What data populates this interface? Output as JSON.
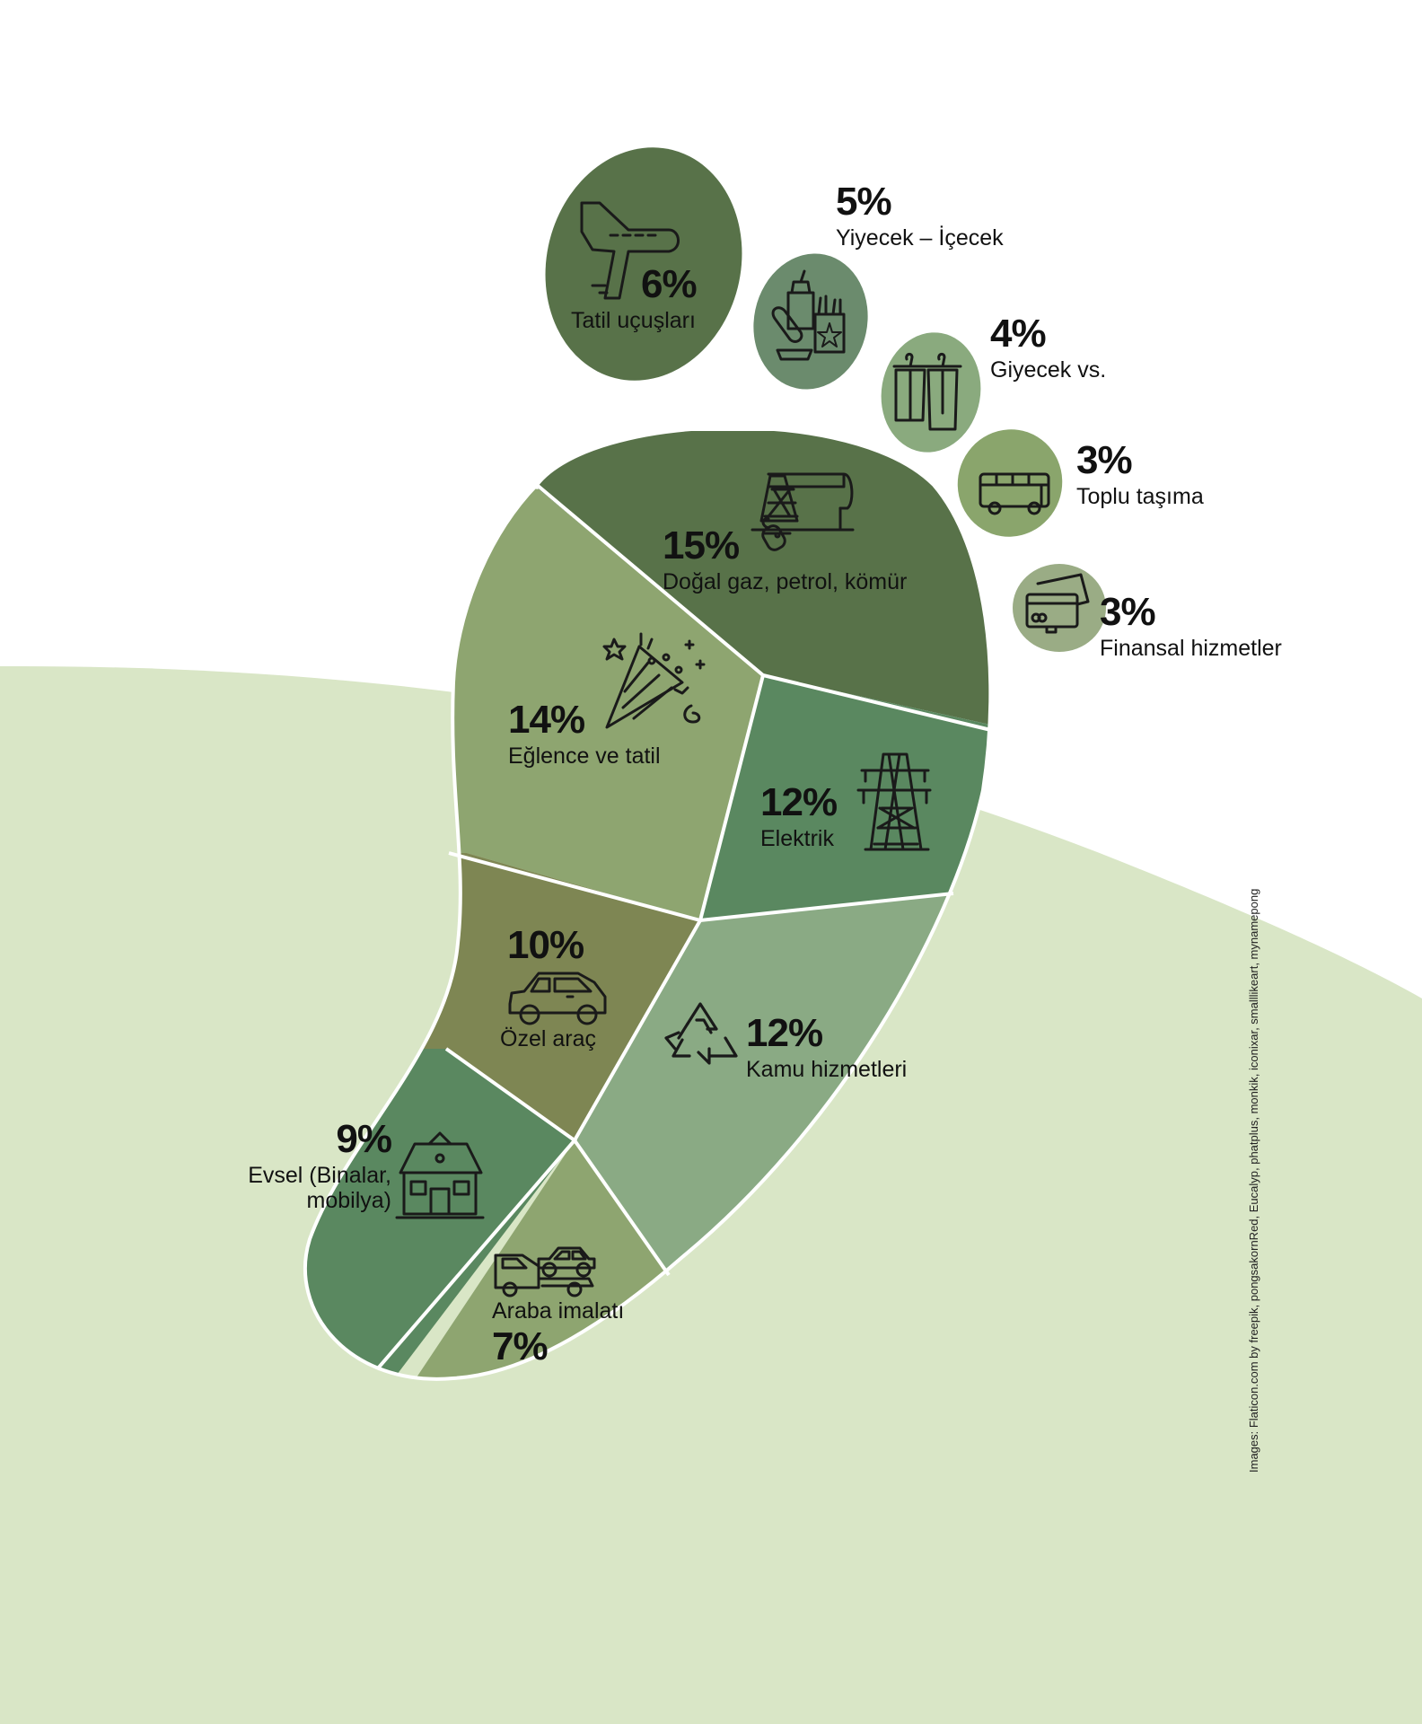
{
  "segments": [
    {
      "id": "tatil-ucuslari",
      "percent": "6%",
      "label": "Tatil uçuşları",
      "color": "#587249",
      "icon": "airplane-icon"
    },
    {
      "id": "yiyecek-icecek",
      "percent": "5%",
      "label": "Yiyecek – İçecek",
      "color": "#6b8b6d",
      "icon": "fast-food-icon"
    },
    {
      "id": "giyecek",
      "percent": "4%",
      "label": "Giyecek vs.",
      "color": "#8aaa7e",
      "icon": "clothes-rack-icon"
    },
    {
      "id": "toplu-tasima",
      "percent": "3%",
      "label": "Toplu taşıma",
      "color": "#8aa56c",
      "icon": "bus-icon"
    },
    {
      "id": "finansal",
      "percent": "3%",
      "label": "Finansal hizmetler",
      "color": "#9aac85",
      "icon": "credit-card-icon"
    },
    {
      "id": "dogal-gaz",
      "percent": "15%",
      "label": "Doğal gaz, petrol, kömür",
      "color": "#587249",
      "icon": "oil-pump-icon"
    },
    {
      "id": "eglence",
      "percent": "14%",
      "label": "Eğlence ve tatil",
      "color": "#8ea570",
      "icon": "party-popper-icon"
    },
    {
      "id": "elektrik",
      "percent": "12%",
      "label": "Elektrik",
      "color": "#5a8860",
      "icon": "power-tower-icon"
    },
    {
      "id": "ozel-arac",
      "percent": "10%",
      "label": "Özel araç",
      "color": "#7e8653",
      "icon": "car-icon"
    },
    {
      "id": "kamu",
      "percent": "12%",
      "label": "Kamu hizmetleri",
      "color": "#8aaa84",
      "icon": "recycle-icon"
    },
    {
      "id": "evsel",
      "percent": "9%",
      "label_line1": "Evsel (Binalar,",
      "label_line2": "mobilya)",
      "color": "#5a8860",
      "icon": "house-icon"
    },
    {
      "id": "araba-imalati",
      "percent": "7%",
      "label": "Araba imalatı",
      "color": "#8ea570",
      "icon": "tow-truck-icon"
    }
  ],
  "credit": "Images: Flaticon.com by freepik, pongsakornRed, Eucalyp, phatplus, monkik, iconixar, smalllikeart, mynamepong",
  "colors": {
    "background_hill": "#d9e6c6",
    "page": "#ffffff",
    "stroke": "#ffffff"
  }
}
